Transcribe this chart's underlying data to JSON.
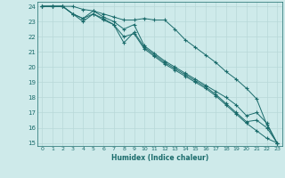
{
  "xlabel": "Humidex (Indice chaleur)",
  "ylabel": "",
  "bg_color": "#ceeaea",
  "grid_color": "#b8d8d8",
  "line_color": "#1a6b6b",
  "marker": "+",
  "xlim": [
    -0.5,
    23.5
  ],
  "ylim": [
    14.8,
    24.3
  ],
  "yticks": [
    15,
    16,
    17,
    18,
    19,
    20,
    21,
    22,
    23,
    24
  ],
  "xticks": [
    0,
    1,
    2,
    3,
    4,
    5,
    6,
    7,
    8,
    9,
    10,
    11,
    12,
    13,
    14,
    15,
    16,
    17,
    18,
    19,
    20,
    21,
    22,
    23
  ],
  "series": [
    {
      "x": [
        0,
        1,
        2,
        3,
        4,
        5,
        6,
        7,
        8,
        9,
        10,
        11,
        12,
        13,
        14,
        15,
        16,
        17,
        18,
        19,
        20,
        21,
        22,
        23
      ],
      "y": [
        24.0,
        24.0,
        24.0,
        24.0,
        23.8,
        23.7,
        23.5,
        23.3,
        23.1,
        23.1,
        23.2,
        23.1,
        23.1,
        22.5,
        21.8,
        21.3,
        20.8,
        20.3,
        19.7,
        19.2,
        18.6,
        17.9,
        16.2,
        15.0
      ]
    },
    {
      "x": [
        0,
        1,
        2,
        3,
        4,
        5,
        6,
        7,
        8,
        9,
        10,
        11,
        12,
        13,
        14,
        15,
        16,
        17,
        18,
        19,
        20,
        21,
        22,
        23
      ],
      "y": [
        24.0,
        24.0,
        24.0,
        23.5,
        23.2,
        23.7,
        23.3,
        23.0,
        22.5,
        22.8,
        21.4,
        20.9,
        20.4,
        20.0,
        19.6,
        19.2,
        18.8,
        18.4,
        18.0,
        17.5,
        16.8,
        17.0,
        16.3,
        15.0
      ]
    },
    {
      "x": [
        0,
        1,
        2,
        3,
        4,
        5,
        6,
        7,
        8,
        9,
        10,
        11,
        12,
        13,
        14,
        15,
        16,
        17,
        18,
        19,
        20,
        21,
        22,
        23
      ],
      "y": [
        24.0,
        24.0,
        24.0,
        23.5,
        23.0,
        23.5,
        23.2,
        22.8,
        21.6,
        22.3,
        21.3,
        20.8,
        20.3,
        19.9,
        19.5,
        19.1,
        18.7,
        18.2,
        17.6,
        17.0,
        16.4,
        16.5,
        16.0,
        15.0
      ]
    },
    {
      "x": [
        0,
        1,
        2,
        3,
        4,
        5,
        6,
        7,
        8,
        9,
        10,
        11,
        12,
        13,
        14,
        15,
        16,
        17,
        18,
        19,
        20,
        21,
        22,
        23
      ],
      "y": [
        24.0,
        24.0,
        24.0,
        23.5,
        23.2,
        23.5,
        23.1,
        22.8,
        22.0,
        22.2,
        21.2,
        20.7,
        20.2,
        19.8,
        19.4,
        19.0,
        18.6,
        18.1,
        17.5,
        16.9,
        16.3,
        15.8,
        15.3,
        15.0
      ]
    }
  ]
}
